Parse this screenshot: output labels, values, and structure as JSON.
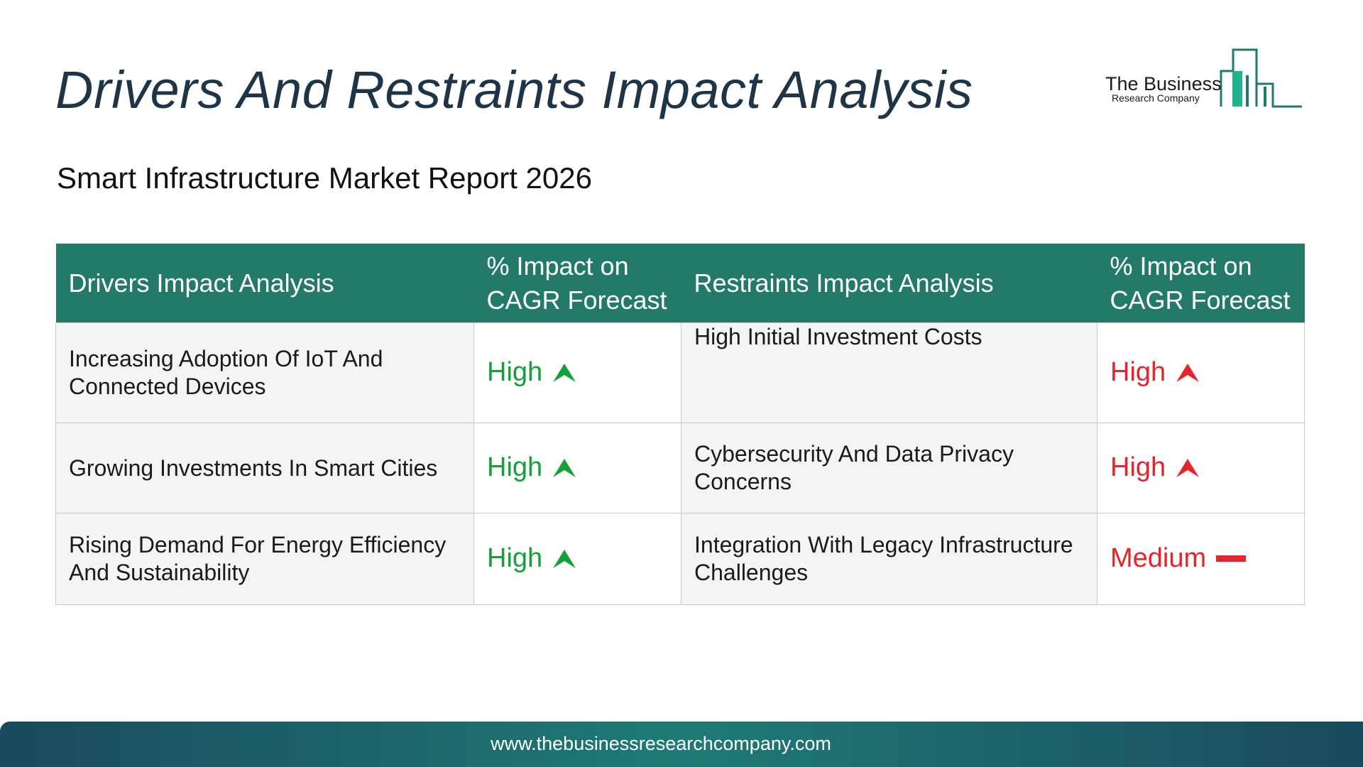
{
  "header": {
    "title": "Drivers And Restraints Impact Analysis",
    "subtitle": "Smart Infrastructure Market Report 2026"
  },
  "logo": {
    "line1": "The Business",
    "line2": "Research Company",
    "icon": "building-skyline-icon",
    "color": "#1f7b6d"
  },
  "table": {
    "headers": {
      "drivers": "Drivers Impact Analysis",
      "drivers_impact": "% Impact on CAGR Forecast",
      "restraints": "Restraints Impact Analysis",
      "restraints_impact": "% Impact on CAGR Forecast"
    },
    "rows": [
      {
        "driver": "Increasing Adoption Of IoT And Connected Devices",
        "driver_impact": "High",
        "driver_icon": "arrow-up-icon",
        "restraint": "High Initial Investment Costs",
        "restraint_impact": "High",
        "restraint_icon": "arrow-up-icon"
      },
      {
        "driver": "Growing Investments In Smart Cities",
        "driver_impact": "High",
        "driver_icon": "arrow-up-icon",
        "restraint": "Cybersecurity And Data Privacy Concerns",
        "restraint_impact": "High",
        "restraint_icon": "arrow-up-icon"
      },
      {
        "driver": "Rising Demand For Energy Efficiency And Sustainability",
        "driver_impact": "High",
        "driver_icon": "arrow-up-icon",
        "restraint": "Integration With Legacy Infrastructure Challenges",
        "restraint_impact": "Medium",
        "restraint_icon": "dash-icon"
      }
    ],
    "colors": {
      "header_bg": "#237a68",
      "driver_impact": "#13a138",
      "restraint_impact": "#e5242b"
    }
  },
  "footer": {
    "url": "www.thebusinessresearchcompany.com"
  }
}
